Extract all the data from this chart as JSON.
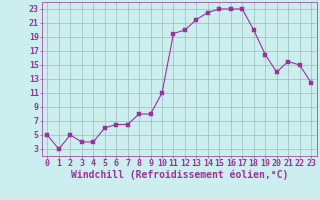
{
  "x": [
    0,
    1,
    2,
    3,
    4,
    5,
    6,
    7,
    8,
    9,
    10,
    11,
    12,
    13,
    14,
    15,
    16,
    17,
    18,
    19,
    20,
    21,
    22,
    23
  ],
  "y": [
    5,
    3,
    5,
    4,
    4,
    6,
    6.5,
    6.5,
    8,
    8,
    11,
    19.5,
    20,
    21.5,
    22.5,
    23,
    23,
    23,
    20,
    16.5,
    14,
    15.5,
    15,
    12.5
  ],
  "line_color": "#993399",
  "marker_color": "#993399",
  "bg_color": "#cceeee",
  "grid_color": "#99bbbb",
  "xlabel": "Windchill (Refroidissement éolien,°C)",
  "xlim": [
    -0.5,
    23.5
  ],
  "ylim": [
    2,
    24
  ],
  "yticks": [
    3,
    5,
    7,
    9,
    11,
    13,
    15,
    17,
    19,
    21,
    23
  ],
  "xticks": [
    0,
    1,
    2,
    3,
    4,
    5,
    6,
    7,
    8,
    9,
    10,
    11,
    12,
    13,
    14,
    15,
    16,
    17,
    18,
    19,
    20,
    21,
    22,
    23
  ],
  "xlabel_fontsize": 7.0,
  "tick_fontsize": 6.0,
  "marker_size": 2.5,
  "linewidth": 0.8
}
